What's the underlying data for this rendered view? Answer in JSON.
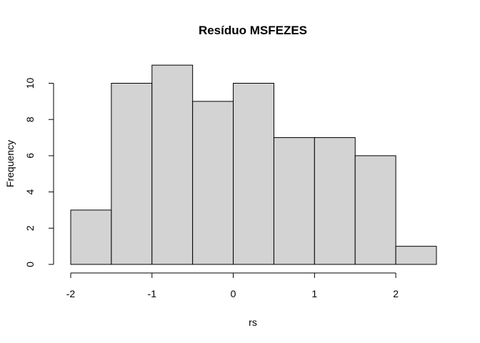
{
  "chart_data": {
    "type": "bar",
    "title": "Resíduo  MSFEZES",
    "xlabel": "rs",
    "ylabel": "Frequency",
    "bins": [
      {
        "from": -2.0,
        "to": -1.5,
        "count": 3
      },
      {
        "from": -1.5,
        "to": -1.0,
        "count": 10
      },
      {
        "from": -1.0,
        "to": -0.5,
        "count": 11
      },
      {
        "from": -0.5,
        "to": 0.0,
        "count": 9
      },
      {
        "from": 0.0,
        "to": 0.5,
        "count": 10
      },
      {
        "from": 0.5,
        "to": 1.0,
        "count": 7
      },
      {
        "from": 1.0,
        "to": 1.5,
        "count": 7
      },
      {
        "from": 1.5,
        "to": 2.0,
        "count": 6
      },
      {
        "from": 2.0,
        "to": 2.5,
        "count": 1
      }
    ],
    "xlim": [
      -2.0,
      2.5
    ],
    "ylim": [
      0,
      11
    ],
    "x_ticks": [
      -2,
      -1,
      0,
      1,
      2
    ],
    "x_tick_labels": [
      "-2",
      "-1",
      "0",
      "1",
      "2"
    ],
    "y_ticks": [
      0,
      2,
      4,
      6,
      8,
      10
    ],
    "y_tick_labels": [
      "0",
      "2",
      "4",
      "6",
      "8",
      "10"
    ],
    "grid": false,
    "bar_fill": "#d3d3d3",
    "bar_stroke": "#000000"
  }
}
